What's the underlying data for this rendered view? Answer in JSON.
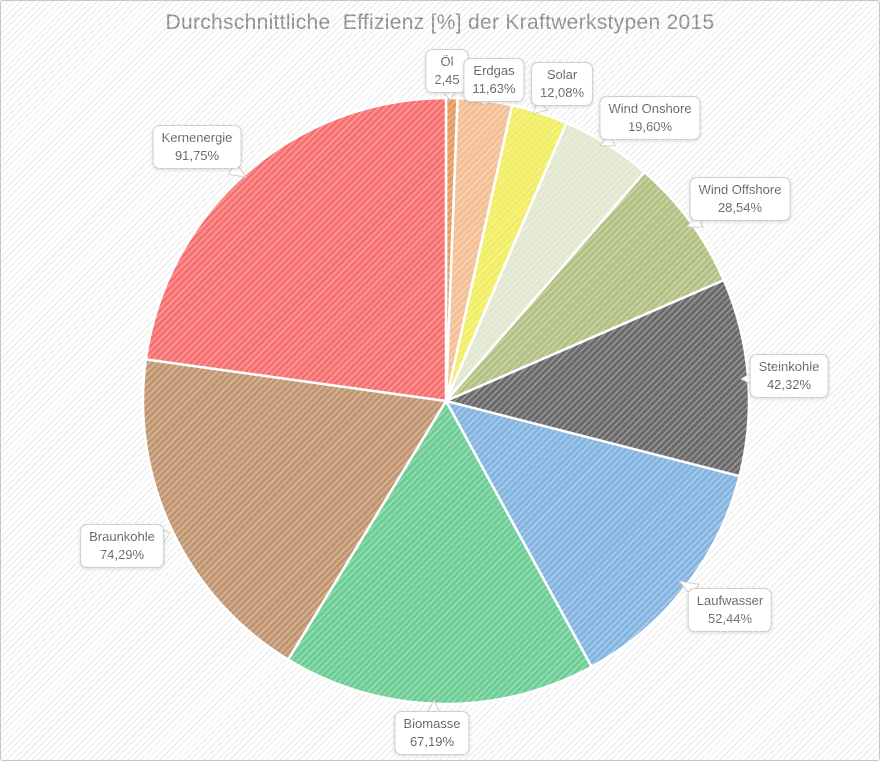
{
  "title": "Durchschnittliche  Effizienz [%] der Kraftwerkstypen 2015",
  "chart_data": {
    "type": "pie",
    "title": "Durchschnittliche  Effizienz [%] der Kraftwerkstypen 2015",
    "unit": "%",
    "rotation": "clockwise-from-12-oclock",
    "angle_basis": "slice angle proportional to value; values sum to 402.29",
    "legend_position": "callout labels around pie",
    "grid": false,
    "slices": [
      {
        "label": "Öl",
        "value": 2.45,
        "display_value": "2,45",
        "color": "#e69a5f"
      },
      {
        "label": "Erdgas",
        "value": 11.63,
        "display_value": "11,63%",
        "color": "#f4bf94"
      },
      {
        "label": "Solar",
        "value": 12.08,
        "display_value": "12,08%",
        "color": "#f2ee62"
      },
      {
        "label": "Wind Onshore",
        "value": 19.6,
        "display_value": "19,60%",
        "color": "#e2e7d0"
      },
      {
        "label": "Wind Offshore",
        "value": 28.54,
        "display_value": "28,54%",
        "color": "#b2c183"
      },
      {
        "label": "Steinkohle",
        "value": 42.32,
        "display_value": "42,32%",
        "color": "#6a6a6a"
      },
      {
        "label": "Laufwasser",
        "value": 52.44,
        "display_value": "52,44%",
        "color": "#84b5e0"
      },
      {
        "label": "Biomasse",
        "value": 67.19,
        "display_value": "67,19%",
        "color": "#6ccd95"
      },
      {
        "label": "Braunkohle",
        "value": 74.29,
        "display_value": "74,29%",
        "color": "#c19570"
      },
      {
        "label": "Kernenergie",
        "value": 91.75,
        "display_value": "91,75%",
        "color": "#f76f6f"
      }
    ]
  }
}
